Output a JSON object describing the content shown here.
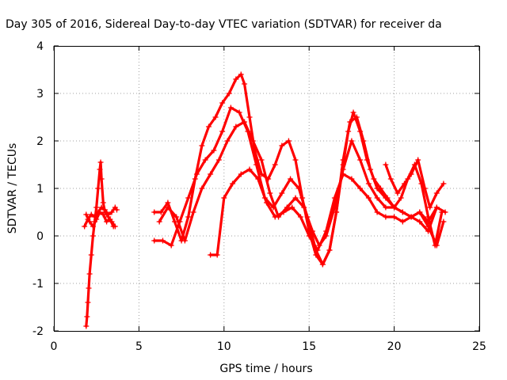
{
  "chart_data": {
    "type": "scatter",
    "title": "Day 305 of 2016, Sidereal Day-to-day VTEC variation (SDTVAR) for receiver da",
    "xlabel": "GPS time / hours",
    "ylabel": "SDTVAR / TECUs",
    "xlim": [
      0,
      25
    ],
    "ylim": [
      -2,
      4
    ],
    "xticks": [
      "0",
      "5",
      "10",
      "15",
      "20",
      "25"
    ],
    "yticks": [
      "-2",
      "-1",
      "0",
      "1",
      "2",
      "3",
      "4"
    ],
    "grid": true,
    "marker": "+",
    "color": "#ff0000",
    "series": [
      {
        "x": [
          1.9,
          1.95,
          2.0,
          2.05,
          2.1,
          2.2,
          2.3,
          2.4,
          2.5,
          2.6,
          2.7,
          2.75,
          2.8,
          2.9,
          3.0,
          3.2,
          3.4,
          3.6
        ],
        "y": [
          -1.9,
          -1.7,
          -1.4,
          -1.1,
          -0.8,
          -0.4,
          0.0,
          0.3,
          0.6,
          1.0,
          1.4,
          1.55,
          1.2,
          0.7,
          0.5,
          0.4,
          0.3,
          0.2
        ]
      },
      {
        "x": [
          1.8,
          2.0,
          2.2,
          2.4,
          2.6,
          2.8,
          3.0,
          3.2,
          3.4,
          3.6,
          3.7
        ],
        "y": [
          0.2,
          0.35,
          0.45,
          0.4,
          0.5,
          0.6,
          0.55,
          0.45,
          0.5,
          0.6,
          0.55
        ]
      },
      {
        "x": [
          1.9,
          2.1,
          2.3,
          2.5,
          2.7,
          2.9,
          3.1,
          3.3,
          3.5
        ],
        "y": [
          0.45,
          0.3,
          0.2,
          0.35,
          0.5,
          0.45,
          0.3,
          0.35,
          0.2
        ]
      },
      {
        "x": [
          5.9,
          6.3,
          6.7,
          7.1,
          7.5,
          7.9,
          8.3,
          8.7,
          9.1,
          9.5,
          9.9,
          10.3,
          10.7,
          11.0,
          11.2,
          11.5,
          11.8,
          12.2,
          12.6,
          13.0,
          13.4,
          13.8,
          14.2,
          14.6,
          15.0,
          15.4,
          15.8,
          16.2,
          16.6,
          17.0,
          17.3,
          17.6,
          18.0,
          18.4,
          18.8,
          19.2,
          19.6,
          20.0,
          20.4,
          20.8,
          21.2,
          21.6,
          22.0,
          22.4,
          22.8
        ],
        "y": [
          0.5,
          0.5,
          0.7,
          0.3,
          -0.1,
          0.4,
          1.2,
          1.9,
          2.3,
          2.5,
          2.8,
          3.0,
          3.3,
          3.4,
          3.2,
          2.5,
          1.8,
          1.3,
          1.2,
          1.5,
          1.9,
          2.0,
          1.6,
          0.8,
          0.1,
          -0.4,
          -0.6,
          -0.3,
          0.5,
          1.5,
          2.2,
          2.6,
          2.2,
          1.6,
          1.2,
          1.0,
          0.8,
          0.6,
          0.8,
          1.2,
          1.5,
          1.1,
          0.4,
          -0.2,
          0.5
        ]
      },
      {
        "x": [
          5.9,
          6.4,
          6.9,
          7.4,
          7.9,
          8.4,
          8.9,
          9.4,
          9.9,
          10.4,
          10.9,
          11.4,
          11.9,
          12.4,
          12.9,
          13.4,
          13.9,
          14.4,
          14.9,
          15.4,
          15.8,
          16.2,
          16.6,
          17.0,
          17.4,
          17.8,
          18.2,
          18.6,
          19.0,
          19.5,
          20.0,
          20.5,
          21.0,
          21.5,
          22.0,
          22.5,
          22.9
        ],
        "y": [
          -0.1,
          -0.1,
          -0.2,
          0.3,
          0.8,
          1.3,
          1.6,
          1.8,
          2.2,
          2.7,
          2.6,
          2.2,
          1.5,
          0.8,
          0.6,
          0.9,
          1.2,
          1.0,
          0.4,
          -0.3,
          -0.6,
          -0.3,
          0.5,
          1.6,
          2.4,
          2.5,
          2.0,
          1.4,
          1.0,
          0.8,
          0.6,
          0.5,
          0.4,
          0.5,
          0.2,
          -0.2,
          0.3
        ]
      },
      {
        "x": [
          6.2,
          6.7,
          7.2,
          7.7,
          8.2,
          8.7,
          9.2,
          9.7,
          10.2,
          10.7,
          11.2,
          11.7,
          12.2,
          12.7,
          13.2,
          13.7,
          14.2,
          14.7,
          15.2,
          15.6,
          16.0,
          16.5,
          17.0,
          17.5,
          18.0,
          18.5,
          19.0,
          19.5,
          20.0,
          20.5,
          21.0,
          21.5,
          22.0,
          22.5,
          23.0
        ],
        "y": [
          0.3,
          0.6,
          0.4,
          -0.1,
          0.5,
          1.0,
          1.3,
          1.6,
          2.0,
          2.3,
          2.4,
          2.0,
          1.6,
          0.9,
          0.4,
          0.6,
          0.8,
          0.6,
          0.1,
          -0.2,
          0.0,
          0.6,
          1.4,
          2.0,
          1.6,
          1.1,
          0.8,
          0.6,
          0.6,
          0.5,
          0.4,
          0.3,
          0.1,
          0.6,
          0.5
        ]
      },
      {
        "x": [
          9.2,
          9.6,
          10.0,
          10.5,
          11.0,
          11.5,
          12.0,
          12.5,
          13.0,
          13.5,
          14.0,
          14.5,
          15.0,
          15.5,
          16.0,
          16.5,
          17.0,
          17.5,
          18.0,
          18.5,
          19.0,
          19.5,
          20.0,
          20.5,
          21.0,
          21.5,
          22.0,
          22.5
        ],
        "y": [
          -0.4,
          -0.4,
          0.8,
          1.1,
          1.3,
          1.4,
          1.2,
          0.7,
          0.4,
          0.5,
          0.6,
          0.4,
          0.0,
          -0.3,
          0.1,
          0.8,
          1.3,
          1.2,
          1.0,
          0.8,
          0.5,
          0.4,
          0.4,
          0.3,
          0.4,
          0.5,
          0.3,
          0.6
        ]
      },
      {
        "x": [
          19.5,
          19.8,
          20.2,
          20.6,
          21.0,
          21.4,
          21.8,
          22.1,
          22.5,
          22.9
        ],
        "y": [
          1.5,
          1.2,
          0.9,
          1.1,
          1.3,
          1.6,
          1.0,
          0.6,
          0.9,
          1.1
        ]
      }
    ]
  }
}
